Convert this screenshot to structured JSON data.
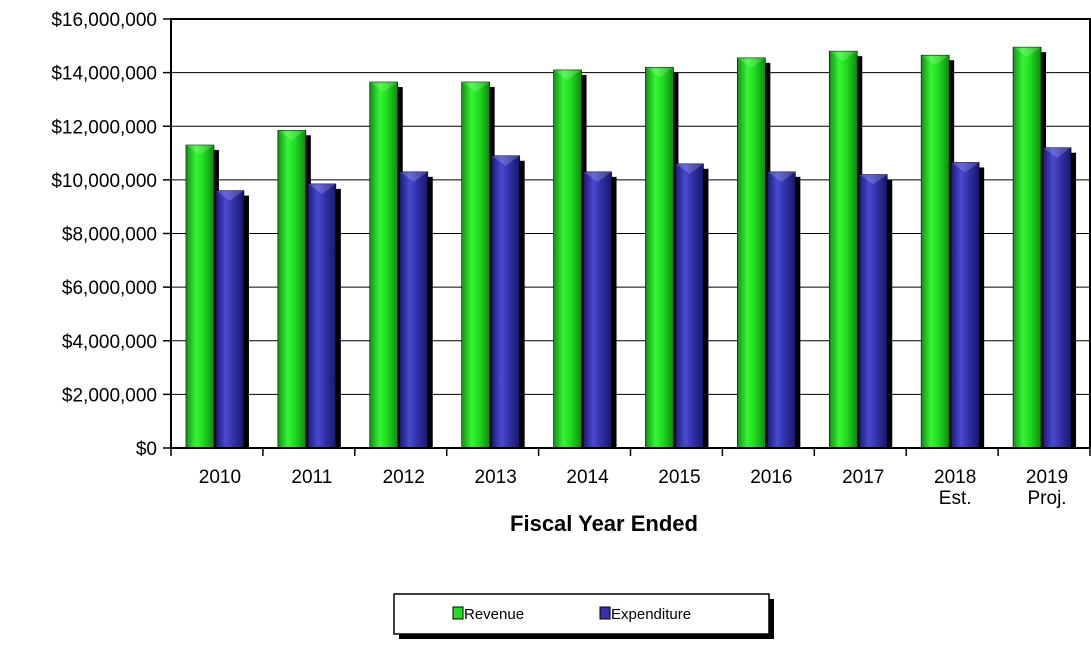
{
  "chart_data": {
    "type": "bar",
    "title": "",
    "xlabel": "Fiscal Year Ended",
    "ylabel": "",
    "categories": [
      [
        "2010"
      ],
      [
        "2011"
      ],
      [
        "2012"
      ],
      [
        "2013"
      ],
      [
        "2014"
      ],
      [
        "2015"
      ],
      [
        "2016"
      ],
      [
        "2017"
      ],
      [
        "2018",
        "Est."
      ],
      [
        "2019",
        "Proj."
      ]
    ],
    "series": [
      {
        "name": "Revenue",
        "color": "#22dd22",
        "values": [
          11300000,
          11850000,
          13650000,
          13650000,
          14100000,
          14200000,
          14550000,
          14800000,
          14650000,
          14950000
        ]
      },
      {
        "name": "Expenditure",
        "color": "#3333aa",
        "values": [
          9600000,
          9850000,
          10300000,
          10900000,
          10300000,
          10600000,
          10300000,
          10200000,
          10650000,
          11200000
        ]
      }
    ],
    "ylim": [
      0,
      16000000
    ],
    "yticks": [
      0,
      2000000,
      4000000,
      6000000,
      8000000,
      10000000,
      12000000,
      14000000,
      16000000
    ],
    "ytick_labels": [
      "$0",
      "$2,000,000",
      "$4,000,000",
      "$6,000,000",
      "$8,000,000",
      "$10,000,000",
      "$12,000,000",
      "$14,000,000",
      "$16,000,000"
    ],
    "grid": true,
    "legend_position": "bottom"
  }
}
